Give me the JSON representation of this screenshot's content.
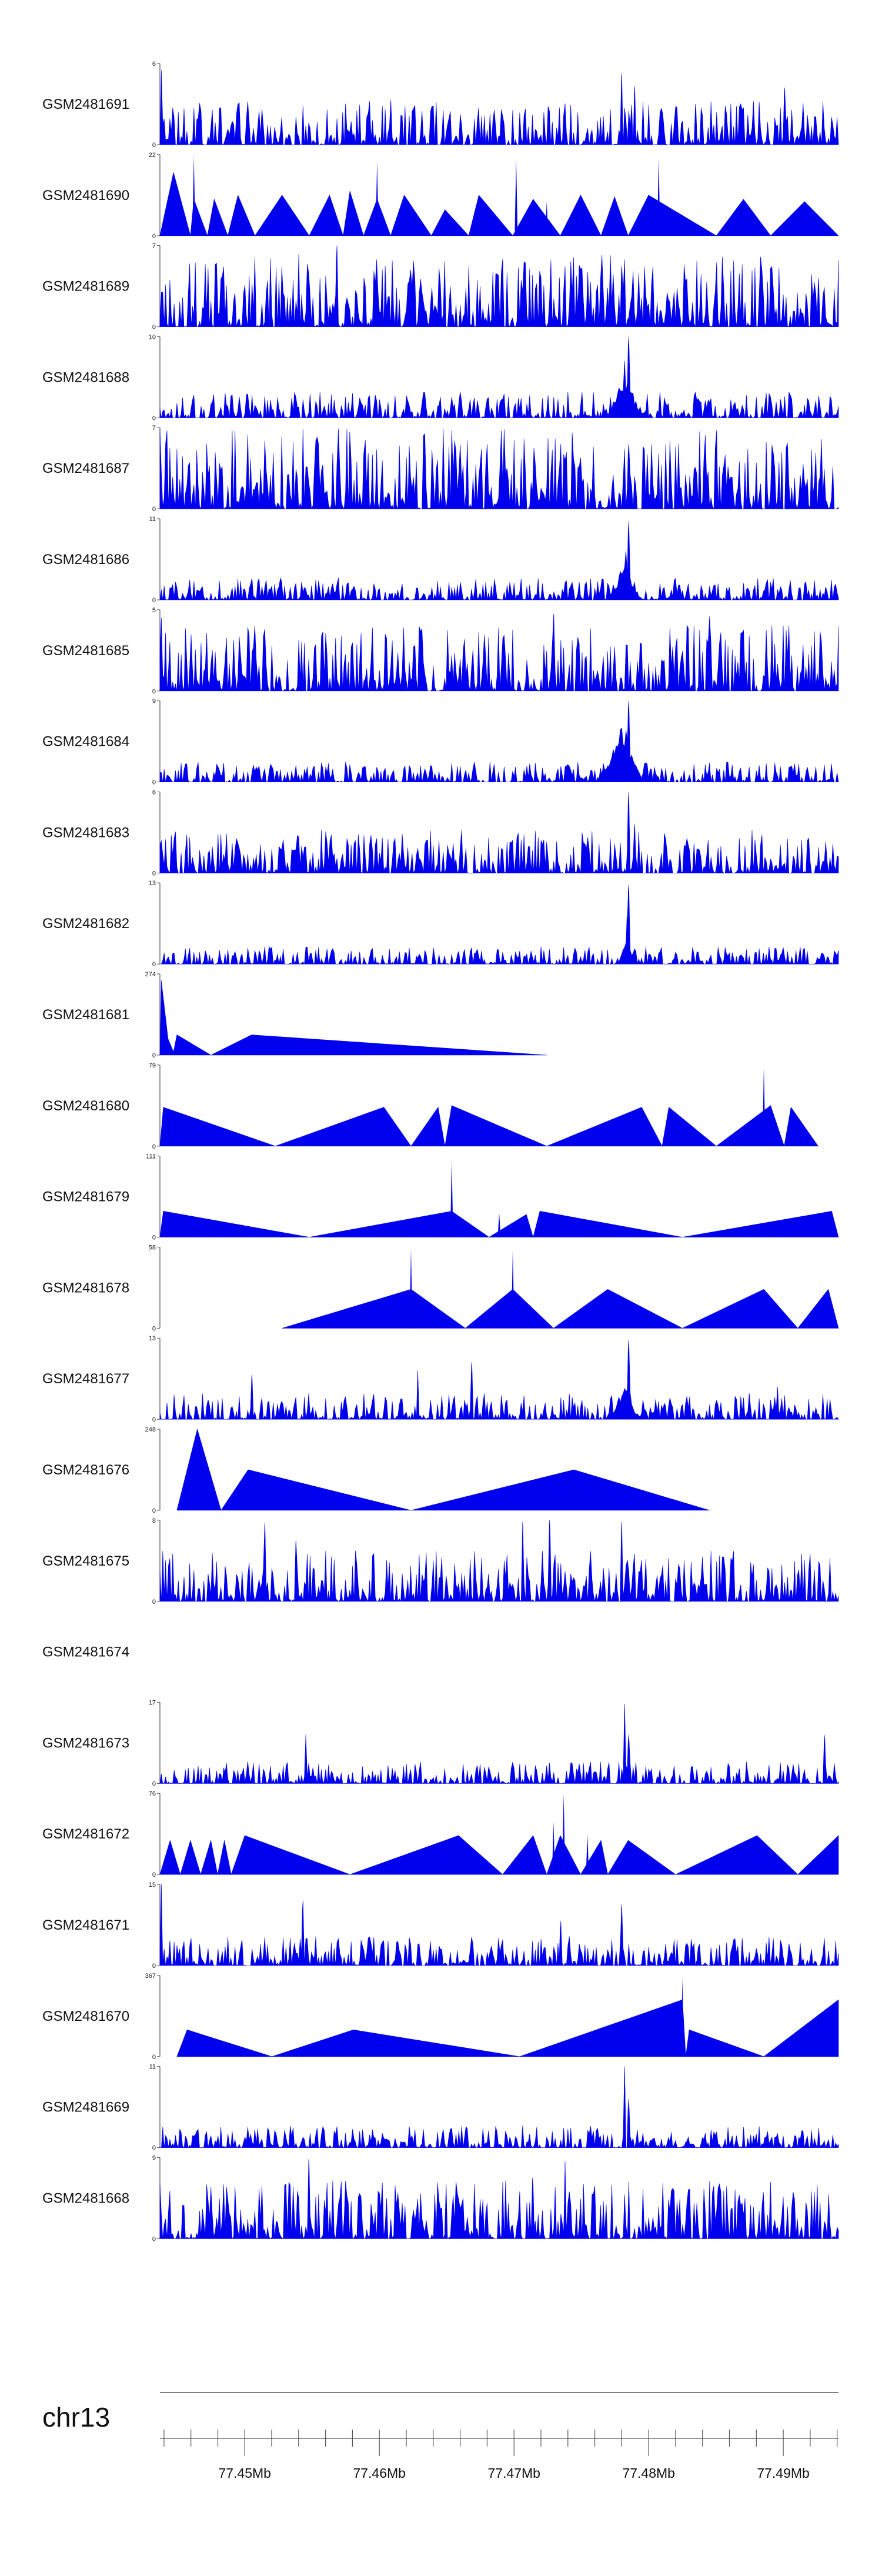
{
  "chart_data": {
    "type": "area",
    "style": {
      "fill_color": "#0000ee",
      "axis_color": "#555555",
      "text_color": "#111111"
    },
    "x_axis": {
      "chromosome": "chr13",
      "start_mb": 77.4437,
      "end_mb": 77.4941,
      "ticks": [
        {
          "mb": 77.45,
          "label": "77.45Mb"
        },
        {
          "mb": 77.46,
          "label": "77.46Mb"
        },
        {
          "mb": 77.47,
          "label": "77.47Mb"
        },
        {
          "mb": 77.48,
          "label": "77.48Mb"
        },
        {
          "mb": 77.49,
          "label": "77.49Mb"
        }
      ]
    },
    "tracks": [
      {
        "name": "GSM2481691",
        "ymax": 6,
        "kind": "dense",
        "seed": 11,
        "density": 0.8,
        "noise": 0.3,
        "spikes": [
          [
            0.002,
            0.92
          ],
          [
            0.05,
            0.45
          ],
          [
            0.34,
            0.55
          ],
          [
            0.68,
            0.88
          ],
          [
            0.7,
            0.72
          ],
          [
            0.79,
            0.5
          ],
          [
            0.92,
            0.7
          ]
        ],
        "peaks": []
      },
      {
        "name": "GSM2481690",
        "ymax": 22,
        "kind": "sparse",
        "points": [
          [
            0,
            0
          ],
          [
            0.02,
            0.78
          ],
          [
            0.045,
            0
          ],
          [
            0.05,
            0.45
          ],
          [
            0.07,
            0
          ],
          [
            0.08,
            0.45
          ],
          [
            0.1,
            0
          ],
          [
            0.115,
            0.5
          ],
          [
            0.14,
            0
          ],
          [
            0.18,
            0.5
          ],
          [
            0.22,
            0
          ],
          [
            0.25,
            0.5
          ],
          [
            0.26,
            0.25
          ],
          [
            0.27,
            0
          ],
          [
            0.28,
            0.55
          ],
          [
            0.3,
            0
          ],
          [
            0.32,
            0.45
          ],
          [
            0.34,
            0
          ],
          [
            0.36,
            0.5
          ],
          [
            0.4,
            0
          ],
          [
            0.42,
            0.32
          ],
          [
            0.455,
            0
          ],
          [
            0.47,
            0.5
          ],
          [
            0.52,
            0
          ],
          [
            0.55,
            0.45
          ],
          [
            0.59,
            0
          ],
          [
            0.62,
            0.5
          ],
          [
            0.65,
            0
          ],
          [
            0.67,
            0.48
          ],
          [
            0.69,
            0
          ],
          [
            0.72,
            0.5
          ],
          [
            0.82,
            0
          ],
          [
            0.86,
            0.45
          ],
          [
            0.9,
            0
          ],
          [
            0.95,
            0.42
          ],
          [
            1,
            0
          ]
        ],
        "spikes": [
          [
            0.05,
            0.98
          ],
          [
            0.32,
            0.92
          ],
          [
            0.525,
            0.95
          ],
          [
            0.57,
            0.42
          ],
          [
            0.735,
            0.96
          ]
        ]
      },
      {
        "name": "GSM2481689",
        "ymax": 7,
        "kind": "dense",
        "seed": 23,
        "density": 0.95,
        "noise": 0.5,
        "spikes": [
          [
            0.26,
            1.0
          ],
          [
            0.14,
            0.85
          ],
          [
            0.68,
            0.75
          ],
          [
            0.97,
            0.6
          ]
        ],
        "peaks": []
      },
      {
        "name": "GSM2481688",
        "ymax": 10,
        "kind": "dense",
        "seed": 37,
        "density": 0.85,
        "noise": 0.18,
        "spikes": [
          [
            0.69,
            1.0
          ],
          [
            0.685,
            0.7
          ]
        ],
        "peaks": [
          [
            0.685,
            0.012,
            0.55
          ]
        ]
      },
      {
        "name": "GSM2481687",
        "ymax": 7,
        "kind": "dense",
        "seed": 41,
        "density": 0.95,
        "noise": 0.55,
        "spikes": [
          [
            0.28,
            0.95
          ],
          [
            0.69,
            0.8
          ],
          [
            0.3,
            0.7
          ]
        ],
        "peaks": []
      },
      {
        "name": "GSM2481686",
        "ymax": 11,
        "kind": "dense",
        "seed": 53,
        "density": 0.85,
        "noise": 0.15,
        "spikes": [
          [
            0.69,
            0.97
          ],
          [
            0.686,
            0.6
          ]
        ],
        "peaks": [
          [
            0.685,
            0.01,
            0.45
          ]
        ]
      },
      {
        "name": "GSM2481685",
        "ymax": 5,
        "kind": "dense",
        "seed": 61,
        "density": 0.9,
        "noise": 0.45,
        "spikes": [
          [
            0.58,
            0.95
          ],
          [
            0.81,
            0.92
          ],
          [
            0.002,
            0.9
          ]
        ],
        "peaks": []
      },
      {
        "name": "GSM2481684",
        "ymax": 9,
        "kind": "dense",
        "seed": 71,
        "density": 0.85,
        "noise": 0.14,
        "spikes": [
          [
            0.69,
            1.0
          ]
        ],
        "peaks": [
          [
            0.68,
            0.014,
            0.7
          ]
        ]
      },
      {
        "name": "GSM2481683",
        "ymax": 6,
        "kind": "dense",
        "seed": 83,
        "density": 0.85,
        "noise": 0.3,
        "spikes": [
          [
            0.69,
            1.0
          ],
          [
            0.7,
            0.6
          ],
          [
            0.002,
            0.4
          ]
        ],
        "peaks": []
      },
      {
        "name": "GSM2481682",
        "ymax": 13,
        "kind": "dense",
        "seed": 97,
        "density": 0.8,
        "noise": 0.12,
        "spikes": [
          [
            0.69,
            0.98
          ],
          [
            0.688,
            0.6
          ]
        ],
        "peaks": [
          [
            0.688,
            0.006,
            0.3
          ]
        ]
      },
      {
        "name": "GSM2481681",
        "ymax": 274,
        "kind": "sparse",
        "points": [
          [
            0,
            0
          ],
          [
            0.002,
            0.92
          ],
          [
            0.012,
            0.2
          ],
          [
            0.02,
            0.04
          ],
          [
            0.025,
            0.25
          ],
          [
            0.075,
            0
          ],
          [
            0.135,
            0.25
          ],
          [
            0.57,
            0
          ]
        ],
        "spikes": []
      },
      {
        "name": "GSM2481680",
        "ymax": 79,
        "kind": "sparse",
        "points": [
          [
            0,
            0
          ],
          [
            0.005,
            0.48
          ],
          [
            0.17,
            0
          ],
          [
            0.33,
            0.48
          ],
          [
            0.37,
            0
          ],
          [
            0.41,
            0.48
          ],
          [
            0.42,
            0
          ],
          [
            0.43,
            0.5
          ],
          [
            0.57,
            0
          ],
          [
            0.71,
            0.48
          ],
          [
            0.74,
            0
          ],
          [
            0.75,
            0.48
          ],
          [
            0.82,
            0
          ],
          [
            0.9,
            0.5
          ],
          [
            0.92,
            0
          ],
          [
            0.93,
            0.48
          ],
          [
            0.97,
            0
          ]
        ],
        "spikes": [
          [
            0.89,
            0.98
          ]
        ]
      },
      {
        "name": "GSM2481679",
        "ymax": 111,
        "kind": "sparse",
        "points": [
          [
            0,
            0
          ],
          [
            0.005,
            0.32
          ],
          [
            0.22,
            0
          ],
          [
            0.43,
            0.32
          ],
          [
            0.485,
            0
          ],
          [
            0.54,
            0.28
          ],
          [
            0.55,
            0
          ],
          [
            0.56,
            0.32
          ],
          [
            0.77,
            0
          ],
          [
            0.99,
            0.32
          ],
          [
            1,
            0
          ]
        ],
        "spikes": [
          [
            0.43,
            0.95
          ],
          [
            0.5,
            0.3
          ]
        ]
      },
      {
        "name": "GSM2481678",
        "ymax": 58,
        "kind": "sparse",
        "points": [
          [
            0.18,
            0
          ],
          [
            0.37,
            0.48
          ],
          [
            0.45,
            0
          ],
          [
            0.52,
            0.48
          ],
          [
            0.58,
            0
          ],
          [
            0.66,
            0.48
          ],
          [
            0.77,
            0
          ],
          [
            0.89,
            0.48
          ],
          [
            0.94,
            0
          ],
          [
            0.985,
            0.48
          ],
          [
            1,
            0
          ]
        ],
        "spikes": [
          [
            0.37,
            0.98
          ],
          [
            0.52,
            0.98
          ]
        ]
      },
      {
        "name": "GSM2481677",
        "ymax": 13,
        "kind": "dense",
        "seed": 113,
        "density": 0.85,
        "noise": 0.18,
        "spikes": [
          [
            0.69,
            0.98
          ],
          [
            0.135,
            0.55
          ],
          [
            0.38,
            0.6
          ],
          [
            0.46,
            0.7
          ],
          [
            0.91,
            0.4
          ]
        ],
        "peaks": [
          [
            0.685,
            0.01,
            0.4
          ]
        ]
      },
      {
        "name": "GSM2481676",
        "ymax": 248,
        "kind": "sparse",
        "points": [
          [
            0.025,
            0
          ],
          [
            0.055,
            1.0
          ],
          [
            0.09,
            0
          ],
          [
            0.13,
            0.5
          ],
          [
            0.37,
            0
          ],
          [
            0.61,
            0.5
          ],
          [
            0.81,
            0
          ]
        ],
        "spikes": []
      },
      {
        "name": "GSM2481675",
        "ymax": 8,
        "kind": "dense",
        "seed": 127,
        "density": 0.9,
        "noise": 0.35,
        "spikes": [
          [
            0.575,
            1.0
          ],
          [
            0.155,
            0.97
          ],
          [
            0.535,
            0.98
          ],
          [
            0.68,
            0.98
          ],
          [
            0.2,
            0.75
          ]
        ],
        "peaks": []
      },
      {
        "name": "GSM2481674",
        "ymax": null,
        "kind": "empty"
      },
      {
        "name": "GSM2481673",
        "ymax": 17,
        "kind": "dense",
        "seed": 131,
        "density": 0.8,
        "noise": 0.15,
        "spikes": [
          [
            0.685,
            0.98
          ],
          [
            0.215,
            0.6
          ],
          [
            0.98,
            0.6
          ],
          [
            0.69,
            0.6
          ]
        ],
        "peaks": []
      },
      {
        "name": "GSM2481672",
        "ymax": 76,
        "kind": "sparse",
        "points": [
          [
            0,
            0
          ],
          [
            0.015,
            0.42
          ],
          [
            0.03,
            0
          ],
          [
            0.045,
            0.42
          ],
          [
            0.06,
            0
          ],
          [
            0.075,
            0.42
          ],
          [
            0.085,
            0
          ],
          [
            0.095,
            0.42
          ],
          [
            0.105,
            0
          ],
          [
            0.125,
            0.48
          ],
          [
            0.28,
            0
          ],
          [
            0.44,
            0.48
          ],
          [
            0.505,
            0
          ],
          [
            0.55,
            0.48
          ],
          [
            0.57,
            0
          ],
          [
            0.59,
            0.48
          ],
          [
            0.62,
            0
          ],
          [
            0.65,
            0.42
          ],
          [
            0.66,
            0
          ],
          [
            0.69,
            0.42
          ],
          [
            0.76,
            0
          ],
          [
            0.88,
            0.48
          ],
          [
            0.94,
            0
          ],
          [
            1,
            0.48
          ]
        ],
        "spikes": [
          [
            0.595,
            1.0
          ],
          [
            0.63,
            0.5
          ],
          [
            0.58,
            0.65
          ]
        ]
      },
      {
        "name": "GSM2481671",
        "ymax": 15,
        "kind": "dense",
        "seed": 149,
        "density": 0.85,
        "noise": 0.2,
        "spikes": [
          [
            0.002,
            1.0
          ],
          [
            0.21,
            0.8
          ],
          [
            0.68,
            0.75
          ],
          [
            0.59,
            0.55
          ]
        ],
        "peaks": []
      },
      {
        "name": "GSM2481670",
        "ymax": 367,
        "kind": "sparse",
        "points": [
          [
            0.025,
            0
          ],
          [
            0.04,
            0.33
          ],
          [
            0.165,
            0
          ],
          [
            0.285,
            0.33
          ],
          [
            0.53,
            0
          ],
          [
            0.77,
            0.7
          ],
          [
            0.775,
            0
          ],
          [
            0.78,
            0.33
          ],
          [
            0.89,
            0
          ],
          [
            1,
            0.7
          ],
          [
            1,
            0
          ]
        ],
        "spikes": [
          [
            0.77,
            0.97
          ]
        ]
      },
      {
        "name": "GSM2481669",
        "ymax": 11,
        "kind": "dense",
        "seed": 163,
        "density": 0.85,
        "noise": 0.15,
        "spikes": [
          [
            0.685,
            1.0
          ],
          [
            0.69,
            0.6
          ]
        ],
        "peaks": []
      },
      {
        "name": "GSM2481668",
        "ymax": 9,
        "kind": "dense",
        "seed": 173,
        "density": 0.9,
        "noise": 0.4,
        "spikes": [
          [
            0.22,
            0.98
          ],
          [
            0.597,
            0.95
          ],
          [
            0.55,
            0.75
          ],
          [
            0.9,
            0.7
          ]
        ],
        "peaks": []
      }
    ]
  }
}
